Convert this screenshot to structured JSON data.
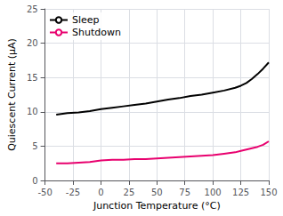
{
  "chart_data": {
    "type": "line",
    "xlabel": "Junction Temperature (°C)",
    "ylabel": "Quiescent Current (μA)",
    "x": [
      -40,
      -30,
      -20,
      -10,
      0,
      10,
      20,
      30,
      40,
      50,
      60,
      70,
      80,
      90,
      100,
      110,
      120,
      125,
      130,
      135,
      140,
      145,
      150
    ],
    "series": [
      {
        "name": "Sleep",
        "color": "#000000",
        "values": [
          9.6,
          9.8,
          9.9,
          10.1,
          10.4,
          10.6,
          10.8,
          11.0,
          11.2,
          11.5,
          11.8,
          12.0,
          12.3,
          12.5,
          12.8,
          13.1,
          13.5,
          13.8,
          14.2,
          14.8,
          15.5,
          16.3,
          17.2
        ]
      },
      {
        "name": "Shutdown",
        "color": "#e8006e",
        "values": [
          2.5,
          2.5,
          2.6,
          2.7,
          2.9,
          3.0,
          3.0,
          3.1,
          3.1,
          3.2,
          3.3,
          3.4,
          3.5,
          3.6,
          3.7,
          3.9,
          4.1,
          4.3,
          4.5,
          4.7,
          4.9,
          5.2,
          5.7
        ]
      }
    ],
    "xlim": [
      -50,
      150
    ],
    "ylim": [
      0,
      25
    ],
    "xticks": [
      -50,
      -25,
      0,
      25,
      50,
      75,
      100,
      125,
      150
    ],
    "yticks": [
      0,
      5,
      10,
      15,
      20,
      25
    ],
    "grid": true,
    "legend": "upper left"
  }
}
